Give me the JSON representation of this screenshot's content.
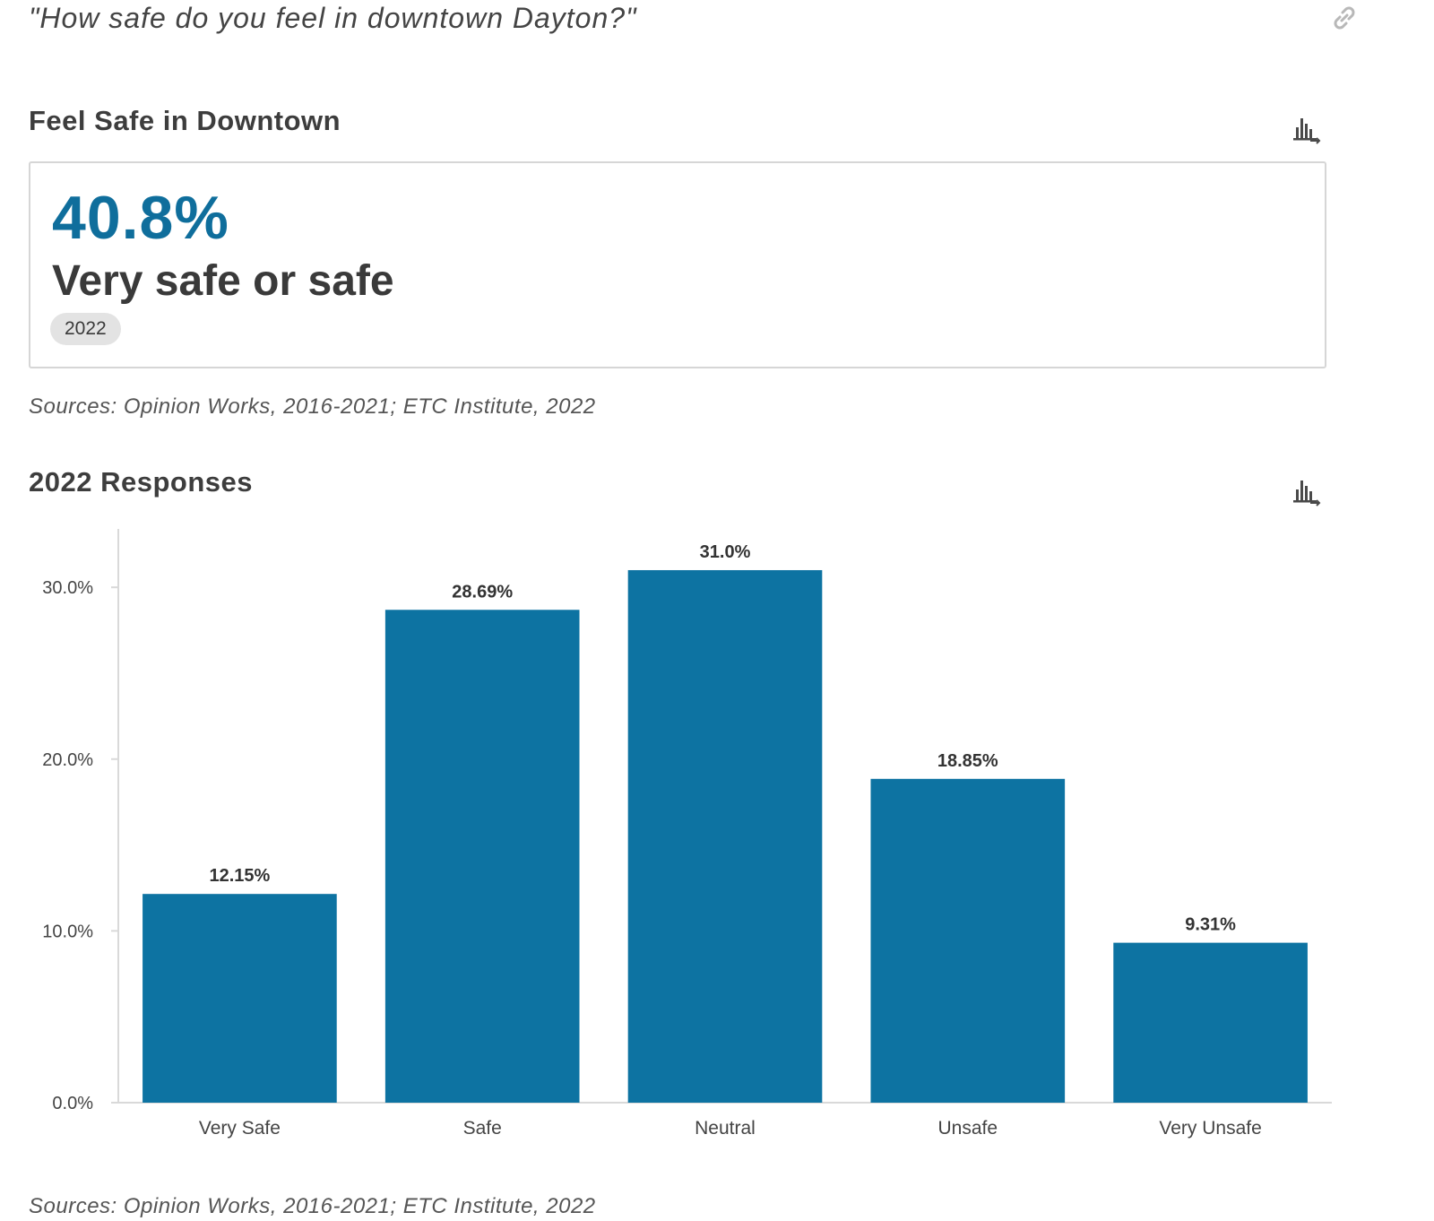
{
  "question": "\"How safe do you feel in downtown Dayton?\"",
  "kpi_section": {
    "title": "Feel Safe in Downtown",
    "value": "40.8%",
    "label": "Very safe or safe",
    "year": "2022",
    "sources": "Sources: Opinion Works, 2016-2021; ETC Institute, 2022"
  },
  "chart_section": {
    "title": "2022 Responses",
    "sources": "Sources: Opinion Works, 2016-2021; ETC Institute, 2022"
  },
  "icons": {
    "link": "link-icon",
    "chart_download": "bar-chart-export-icon"
  },
  "colors": {
    "accent": "#0f6e9c",
    "bar": "#0d73a2"
  },
  "chart_data": {
    "type": "bar",
    "categories": [
      "Very Safe",
      "Safe",
      "Neutral",
      "Unsafe",
      "Very Unsafe"
    ],
    "values": [
      12.15,
      28.69,
      31.0,
      18.85,
      9.31
    ],
    "data_labels": [
      "12.15%",
      "28.69%",
      "31.0%",
      "18.85%",
      "9.31%"
    ],
    "y_ticks": [
      0,
      10,
      20,
      30
    ],
    "y_tick_labels": [
      "0.0%",
      "10.0%",
      "20.0%",
      "30.0%"
    ],
    "ylim": [
      0,
      33.4
    ],
    "grid": false,
    "title": "2022 Responses",
    "xlabel": "",
    "ylabel": ""
  }
}
